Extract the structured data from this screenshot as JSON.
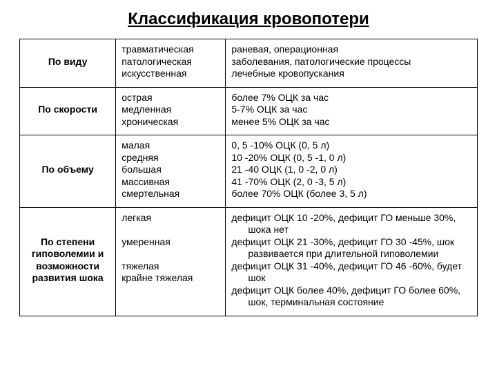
{
  "title": "Классификация кровопотери",
  "rows": [
    {
      "head": "По виду",
      "col2": "травматическая\nпатологическая\nискусственная",
      "col3": "раневая, операционная\nзаболевания, патологические процессы\nлечебные кровопускания"
    },
    {
      "head": "По скорости",
      "col2": "острая\nмедленная\nхроническая",
      "col3": "более 7% ОЦК за час\n5-7% ОЦК за час\nменее 5% ОЦК за час"
    },
    {
      "head": "По объему",
      "col2": "малая\nсредняя\nбольшая\nмассивная\nсмертельная",
      "col3": "0, 5 -10% ОЦК (0, 5 л)\n10 -20% ОЦК (0, 5 -1, 0 л)\n21 -40 ОЦК (1, 0 -2, 0 л)\n41 -70% ОЦК (2, 0 -3, 5 л)\nболее 70% ОЦК (более 3, 5 л)"
    },
    {
      "head": "По степени гиповолемии и возможности развития шока",
      "col2": "легкая\n\nумеренная\n\nтяжелая\nкрайне тяжелая",
      "col3_lines": [
        {
          "t": "дефицит ОЦК 10 -20%, дефицит ГО меньше 30%,",
          "i": false
        },
        {
          "t": "шока нет",
          "i": true
        },
        {
          "t": "дефицит ОЦК 21 -30%, дефицит ГО 30 -45%, шок",
          "i": false
        },
        {
          "t": "развивается при длительной гиповолемии",
          "i": true
        },
        {
          "t": "дефицит ОЦК 31 -40%, дефицит ГО 46 -60%, будет",
          "i": false
        },
        {
          "t": "шок",
          "i": true
        },
        {
          "t": "дефицит ОЦК более 40%, дефицит ГО более 60%,",
          "i": false
        },
        {
          "t": "шок, терминальная состояние",
          "i": true
        }
      ]
    }
  ]
}
